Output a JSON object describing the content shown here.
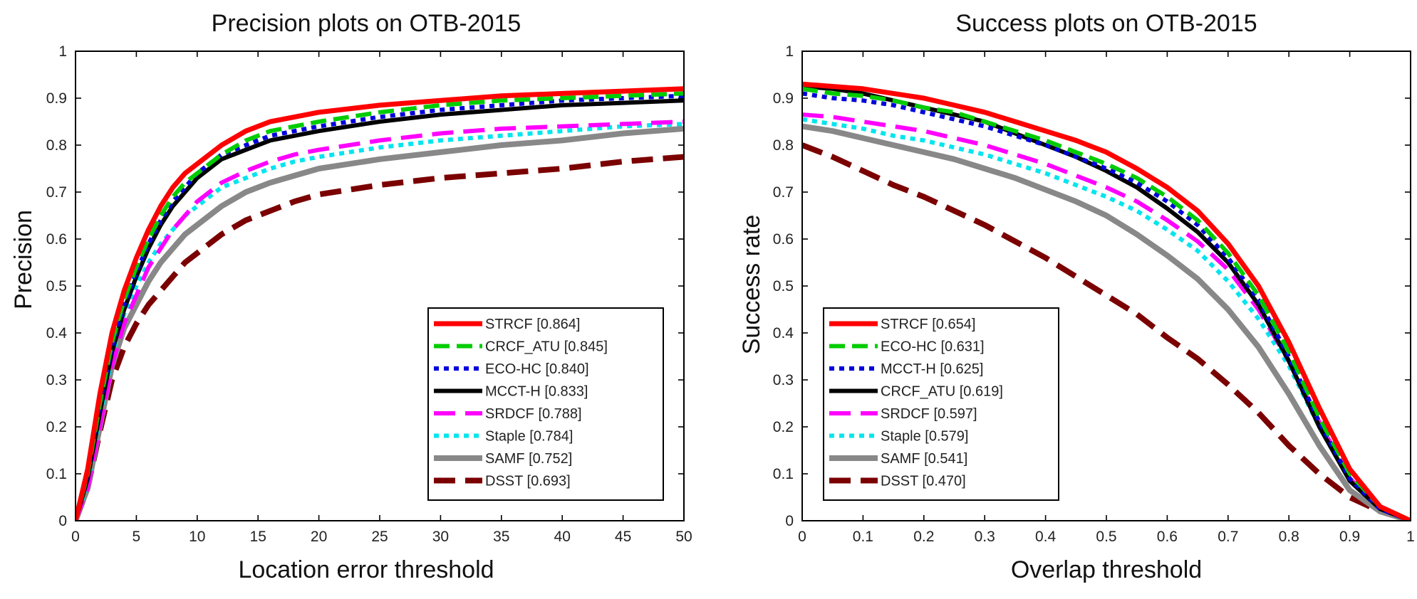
{
  "chart_data": [
    {
      "type": "line",
      "title": "Precision plots on OTB-2015",
      "xlabel": "Location error threshold",
      "ylabel": "Precision",
      "xlim": [
        0,
        50
      ],
      "ylim": [
        0,
        1
      ],
      "xticks": [
        "0",
        "5",
        "10",
        "15",
        "20",
        "25",
        "30",
        "35",
        "40",
        "45",
        "50"
      ],
      "yticks": [
        "0",
        "0.1",
        "0.2",
        "0.3",
        "0.4",
        "0.5",
        "0.6",
        "0.7",
        "0.8",
        "0.9",
        "1"
      ],
      "legend_position": "bottom-right",
      "x": [
        0,
        1,
        2,
        3,
        4,
        5,
        6,
        7,
        8,
        9,
        10,
        12,
        14,
        16,
        18,
        20,
        25,
        30,
        35,
        40,
        45,
        50
      ],
      "series": [
        {
          "name": "STRCF",
          "legend": "STRCF [0.864]",
          "color": "#ff0000",
          "style": "solid",
          "width": 7,
          "values": [
            0.0,
            0.11,
            0.27,
            0.4,
            0.49,
            0.56,
            0.62,
            0.67,
            0.71,
            0.74,
            0.76,
            0.8,
            0.83,
            0.85,
            0.86,
            0.87,
            0.885,
            0.895,
            0.905,
            0.91,
            0.915,
            0.92
          ]
        },
        {
          "name": "CRCF_ATU",
          "legend": "CRCF_ATU [0.845]",
          "color": "#00cc00",
          "style": "dash",
          "width": 6,
          "values": [
            0.0,
            0.1,
            0.25,
            0.38,
            0.47,
            0.54,
            0.6,
            0.65,
            0.69,
            0.72,
            0.74,
            0.78,
            0.81,
            0.83,
            0.84,
            0.85,
            0.87,
            0.885,
            0.895,
            0.9,
            0.905,
            0.91
          ]
        },
        {
          "name": "ECO-HC",
          "legend": "ECO-HC [0.840]",
          "color": "#0000dd",
          "style": "dot",
          "width": 6,
          "values": [
            0.0,
            0.1,
            0.25,
            0.37,
            0.46,
            0.53,
            0.59,
            0.64,
            0.68,
            0.71,
            0.74,
            0.78,
            0.8,
            0.82,
            0.83,
            0.84,
            0.86,
            0.875,
            0.885,
            0.895,
            0.9,
            0.905
          ]
        },
        {
          "name": "MCCT-H",
          "legend": "MCCT-H [0.833]",
          "color": "#000000",
          "style": "solid",
          "width": 6,
          "values": [
            0.0,
            0.09,
            0.23,
            0.36,
            0.45,
            0.52,
            0.58,
            0.63,
            0.67,
            0.7,
            0.73,
            0.77,
            0.79,
            0.81,
            0.82,
            0.83,
            0.85,
            0.865,
            0.875,
            0.885,
            0.89,
            0.895
          ]
        },
        {
          "name": "SRDCF",
          "legend": "SRDCF [0.788]",
          "color": "#ff00ff",
          "style": "longdash",
          "width": 6,
          "values": [
            0.0,
            0.07,
            0.2,
            0.33,
            0.42,
            0.48,
            0.54,
            0.58,
            0.62,
            0.65,
            0.68,
            0.72,
            0.745,
            0.765,
            0.78,
            0.79,
            0.81,
            0.825,
            0.835,
            0.84,
            0.845,
            0.85
          ]
        },
        {
          "name": "Staple",
          "legend": "Staple [0.784]",
          "color": "#00e5ee",
          "style": "dot",
          "width": 6,
          "values": [
            0.0,
            0.08,
            0.22,
            0.35,
            0.44,
            0.5,
            0.55,
            0.59,
            0.62,
            0.65,
            0.67,
            0.71,
            0.73,
            0.75,
            0.765,
            0.775,
            0.795,
            0.81,
            0.82,
            0.83,
            0.84,
            0.845
          ]
        },
        {
          "name": "SAMF",
          "legend": "SAMF [0.752]",
          "color": "#888888",
          "style": "solid",
          "width": 8,
          "values": [
            0.0,
            0.07,
            0.2,
            0.33,
            0.41,
            0.46,
            0.51,
            0.55,
            0.58,
            0.61,
            0.63,
            0.67,
            0.7,
            0.72,
            0.735,
            0.75,
            0.77,
            0.785,
            0.8,
            0.81,
            0.825,
            0.835
          ]
        },
        {
          "name": "DSST",
          "legend": "DSST [0.693]",
          "color": "#7b0000",
          "style": "longdash",
          "width": 8,
          "values": [
            0.0,
            0.07,
            0.19,
            0.3,
            0.37,
            0.42,
            0.46,
            0.49,
            0.52,
            0.55,
            0.57,
            0.61,
            0.64,
            0.66,
            0.68,
            0.695,
            0.715,
            0.73,
            0.74,
            0.75,
            0.765,
            0.775
          ]
        }
      ]
    },
    {
      "type": "line",
      "title": "Success plots on OTB-2015",
      "xlabel": "Overlap threshold",
      "ylabel": "Success rate",
      "xlim": [
        0,
        1
      ],
      "ylim": [
        0,
        1
      ],
      "xticks": [
        "0",
        "0.1",
        "0.2",
        "0.3",
        "0.4",
        "0.5",
        "0.6",
        "0.7",
        "0.8",
        "0.9",
        "1"
      ],
      "yticks": [
        "0",
        "0.1",
        "0.2",
        "0.3",
        "0.4",
        "0.5",
        "0.6",
        "0.7",
        "0.8",
        "0.9",
        "1"
      ],
      "legend_position": "bottom-left",
      "x": [
        0,
        0.05,
        0.1,
        0.15,
        0.2,
        0.25,
        0.3,
        0.35,
        0.4,
        0.45,
        0.5,
        0.55,
        0.6,
        0.65,
        0.7,
        0.75,
        0.8,
        0.85,
        0.9,
        0.95,
        1.0
      ],
      "series": [
        {
          "name": "STRCF",
          "legend": "STRCF [0.654]",
          "color": "#ff0000",
          "style": "solid",
          "width": 7,
          "values": [
            0.93,
            0.925,
            0.92,
            0.91,
            0.9,
            0.885,
            0.87,
            0.85,
            0.83,
            0.81,
            0.785,
            0.75,
            0.71,
            0.66,
            0.59,
            0.5,
            0.38,
            0.24,
            0.11,
            0.03,
            0.0
          ]
        },
        {
          "name": "ECO-HC",
          "legend": "ECO-HC [0.631]",
          "color": "#00cc00",
          "style": "dash",
          "width": 6,
          "values": [
            0.92,
            0.91,
            0.905,
            0.895,
            0.88,
            0.87,
            0.85,
            0.83,
            0.81,
            0.785,
            0.76,
            0.73,
            0.69,
            0.64,
            0.57,
            0.48,
            0.36,
            0.22,
            0.1,
            0.03,
            0.0
          ]
        },
        {
          "name": "MCCT-H",
          "legend": "MCCT-H [0.625]",
          "color": "#0000dd",
          "style": "dot",
          "width": 6,
          "values": [
            0.91,
            0.9,
            0.895,
            0.885,
            0.87,
            0.855,
            0.84,
            0.82,
            0.8,
            0.775,
            0.75,
            0.72,
            0.68,
            0.63,
            0.56,
            0.47,
            0.35,
            0.21,
            0.09,
            0.025,
            0.0
          ]
        },
        {
          "name": "CRCF_ATU",
          "legend": "CRCF_ATU [0.619]",
          "color": "#000000",
          "style": "solid",
          "width": 6,
          "values": [
            0.925,
            0.92,
            0.91,
            0.895,
            0.88,
            0.865,
            0.85,
            0.825,
            0.8,
            0.775,
            0.745,
            0.71,
            0.665,
            0.615,
            0.55,
            0.46,
            0.34,
            0.2,
            0.085,
            0.025,
            0.0
          ]
        },
        {
          "name": "SRDCF",
          "legend": "SRDCF [0.597]",
          "color": "#ff00ff",
          "style": "longdash",
          "width": 6,
          "values": [
            0.865,
            0.86,
            0.85,
            0.84,
            0.83,
            0.815,
            0.8,
            0.78,
            0.76,
            0.735,
            0.71,
            0.68,
            0.64,
            0.595,
            0.535,
            0.45,
            0.34,
            0.21,
            0.09,
            0.025,
            0.0
          ]
        },
        {
          "name": "Staple",
          "legend": "Staple [0.579]",
          "color": "#00e5ee",
          "style": "dot",
          "width": 6,
          "values": [
            0.855,
            0.845,
            0.835,
            0.82,
            0.81,
            0.795,
            0.78,
            0.76,
            0.74,
            0.715,
            0.69,
            0.66,
            0.62,
            0.575,
            0.51,
            0.43,
            0.33,
            0.2,
            0.085,
            0.025,
            0.0
          ]
        },
        {
          "name": "SAMF",
          "legend": "SAMF [0.541]",
          "color": "#888888",
          "style": "solid",
          "width": 8,
          "values": [
            0.84,
            0.83,
            0.815,
            0.8,
            0.785,
            0.77,
            0.75,
            0.73,
            0.705,
            0.68,
            0.65,
            0.61,
            0.565,
            0.515,
            0.45,
            0.37,
            0.27,
            0.16,
            0.065,
            0.02,
            0.0
          ]
        },
        {
          "name": "DSST",
          "legend": "DSST [0.470]",
          "color": "#7b0000",
          "style": "longdash",
          "width": 8,
          "values": [
            0.8,
            0.775,
            0.745,
            0.715,
            0.69,
            0.66,
            0.63,
            0.595,
            0.56,
            0.52,
            0.48,
            0.44,
            0.39,
            0.345,
            0.29,
            0.23,
            0.16,
            0.1,
            0.05,
            0.02,
            0.0
          ]
        }
      ]
    }
  ]
}
